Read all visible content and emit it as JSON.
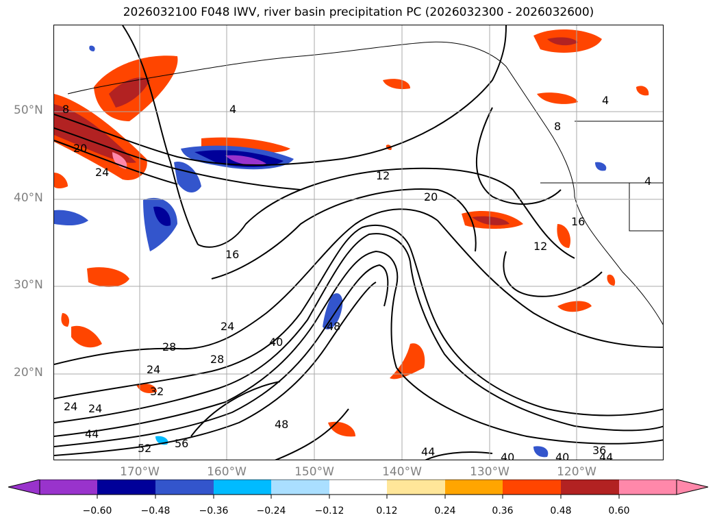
{
  "title": "2026032100 F048 IWV, river basin precipitation PC (2026032300 - 2026032600)",
  "map": {
    "lat_labels": [
      "50°N",
      "40°N",
      "30°N",
      "20°N"
    ],
    "lon_labels": [
      "170°W",
      "160°W",
      "150°W",
      "140°W",
      "130°W",
      "120°W"
    ],
    "contour_labels": [
      "8",
      "20",
      "24",
      "4",
      "12",
      "20",
      "16",
      "12",
      "16",
      "4",
      "8",
      "4",
      "24",
      "28",
      "24",
      "28",
      "40",
      "48",
      "32",
      "24",
      "24",
      "44",
      "52",
      "56",
      "48",
      "44",
      "40",
      "40",
      "36",
      "44"
    ]
  },
  "colorbar": {
    "colors": [
      "#9933cc",
      "#000099",
      "#3355cc",
      "#00bbff",
      "#aadfff",
      "#ffffff",
      "#ffe699",
      "#ffa500",
      "#ff4500",
      "#b22222",
      "#ff88aa"
    ],
    "tick_labels": [
      "−0.60",
      "−0.48",
      "−0.36",
      "−0.24",
      "−0.12",
      "0.12",
      "0.24",
      "0.36",
      "0.48",
      "0.60"
    ]
  }
}
